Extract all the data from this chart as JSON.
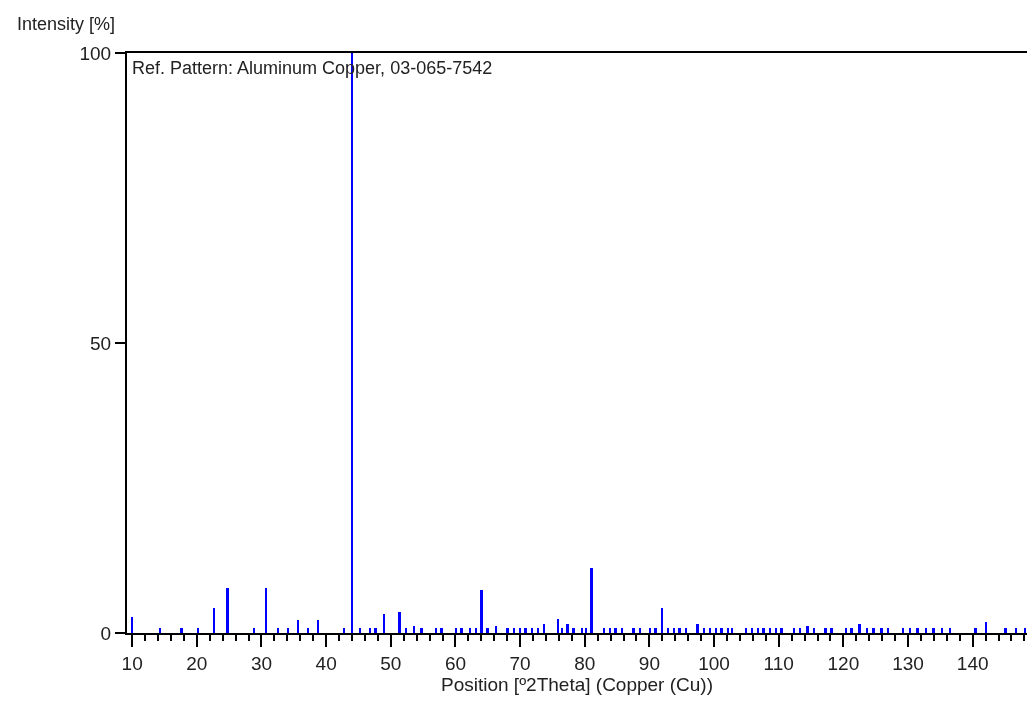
{
  "chart_data": {
    "type": "bar",
    "xlabel": "Position [º2Theta] (Copper (Cu))",
    "ylabel": "Intensity [%]",
    "annotations": [
      "Ref. Pattern: Aluminum Copper, 03-065-7542"
    ],
    "x": [
      10.0,
      14.3,
      17.7,
      20.2,
      22.7,
      24.8,
      28.9,
      30.7,
      32.6,
      34.1,
      35.7,
      37.2,
      38.8,
      42.8,
      44.0,
      45.3,
      46.8,
      47.7,
      49.0,
      51.4,
      52.4,
      53.6,
      54.8,
      57.0,
      57.9,
      60.1,
      61.0,
      62.3,
      63.2,
      64.1,
      65.0,
      66.3,
      68.1,
      69.1,
      70.0,
      70.9,
      71.9,
      72.8,
      73.7,
      75.9,
      76.5,
      77.4,
      78.3,
      79.6,
      80.2,
      81.1,
      83.0,
      83.9,
      84.8,
      85.8,
      87.6,
      88.6,
      90.1,
      91.0,
      92.0,
      92.9,
      93.8,
      94.7,
      95.7,
      97.5,
      98.5,
      99.4,
      100.3,
      101.2,
      102.2,
      102.8,
      105.0,
      105.9,
      106.8,
      107.7,
      108.7,
      109.6,
      110.5,
      112.4,
      113.3,
      114.5,
      115.5,
      117.3,
      118.2,
      120.4,
      121.3,
      122.5,
      123.7,
      124.7,
      125.9,
      126.9,
      129.3,
      130.3,
      131.5,
      132.8,
      134.0,
      135.3,
      136.5,
      140.5,
      142.1,
      145.1,
      146.7,
      148.1
    ],
    "series": [
      {
        "color": "#0000ff",
        "values": [
          2.8,
          0.8,
          0.8,
          0.8,
          4.3,
          7.7,
          0.8,
          7.7,
          0.8,
          0.8,
          2.2,
          0.8,
          2.2,
          0.8,
          100,
          0.8,
          0.8,
          0.8,
          3.2,
          3.6,
          0.8,
          1.2,
          0.8,
          0.8,
          0.8,
          0.8,
          0.8,
          0.8,
          0.8,
          7.4,
          0.8,
          1.2,
          0.8,
          0.8,
          0.8,
          0.8,
          0.8,
          0.8,
          1.5,
          2.5,
          0.8,
          1.5,
          0.8,
          0.8,
          0.8,
          11.2,
          0.8,
          0.8,
          0.8,
          0.8,
          0.8,
          0.8,
          0.8,
          0.8,
          4.3,
          0.8,
          0.8,
          0.8,
          0.8,
          1.5,
          0.8,
          0.8,
          0.8,
          0.8,
          0.8,
          0.8,
          0.8,
          0.8,
          0.8,
          0.8,
          0.8,
          0.8,
          0.8,
          0.8,
          0.8,
          1.2,
          0.8,
          0.8,
          0.8,
          0.8,
          0.8,
          1.5,
          0.8,
          0.8,
          0.8,
          0.8,
          0.8,
          0.8,
          0.8,
          0.8,
          0.8,
          0.8,
          0.8,
          0.8,
          1.9,
          0.8,
          0.8,
          0.8
        ]
      }
    ],
    "xlim": [
      9.2,
      148.4
    ],
    "ylim": [
      0,
      100
    ],
    "xticks": [
      10,
      {
        "value": 12,
        "label": null
      },
      {
        "value": 14,
        "label": null
      },
      {
        "value": 16,
        "label": null
      },
      {
        "value": 18,
        "label": null
      },
      20,
      {
        "value": 22,
        "label": null
      },
      {
        "value": 24,
        "label": null
      },
      {
        "value": 26,
        "label": null
      },
      {
        "value": 28,
        "label": null
      },
      30,
      {
        "value": 32,
        "label": null
      },
      {
        "value": 34,
        "label": null
      },
      {
        "value": 36,
        "label": null
      },
      {
        "value": 38,
        "label": null
      },
      40,
      {
        "value": 42,
        "label": null
      },
      {
        "value": 44,
        "label": null
      },
      {
        "value": 46,
        "label": null
      },
      {
        "value": 48,
        "label": null
      },
      50,
      {
        "value": 52,
        "label": null
      },
      {
        "value": 54,
        "label": null
      },
      {
        "value": 56,
        "label": null
      },
      {
        "value": 58,
        "label": null
      },
      60,
      {
        "value": 62,
        "label": null
      },
      {
        "value": 64,
        "label": null
      },
      {
        "value": 66,
        "label": null
      },
      {
        "value": 68,
        "label": null
      },
      70,
      {
        "value": 72,
        "label": null
      },
      {
        "value": 74,
        "label": null
      },
      {
        "value": 76,
        "label": null
      },
      {
        "value": 78,
        "label": null
      },
      80,
      {
        "value": 82,
        "label": null
      },
      {
        "value": 84,
        "label": null
      },
      {
        "value": 86,
        "label": null
      },
      {
        "value": 88,
        "label": null
      },
      90,
      {
        "value": 92,
        "label": null
      },
      {
        "value": 94,
        "label": null
      },
      {
        "value": 96,
        "label": null
      },
      {
        "value": 98,
        "label": null
      },
      100,
      {
        "value": 102,
        "label": null
      },
      {
        "value": 104,
        "label": null
      },
      {
        "value": 106,
        "label": null
      },
      {
        "value": 108,
        "label": null
      },
      110,
      {
        "value": 112,
        "label": null
      },
      {
        "value": 114,
        "label": null
      },
      {
        "value": 116,
        "label": null
      },
      {
        "value": 118,
        "label": null
      },
      120,
      {
        "value": 122,
        "label": null
      },
      {
        "value": 124,
        "label": null
      },
      {
        "value": 126,
        "label": null
      },
      {
        "value": 128,
        "label": null
      },
      130,
      {
        "value": 132,
        "label": null
      },
      {
        "value": 134,
        "label": null
      },
      {
        "value": 136,
        "label": null
      },
      {
        "value": 138,
        "label": null
      },
      140,
      {
        "value": 142,
        "label": null
      },
      {
        "value": 144,
        "label": null
      },
      {
        "value": 146,
        "label": null
      },
      {
        "value": 148,
        "label": null
      }
    ],
    "yticks": [
      0,
      50,
      100
    ]
  }
}
